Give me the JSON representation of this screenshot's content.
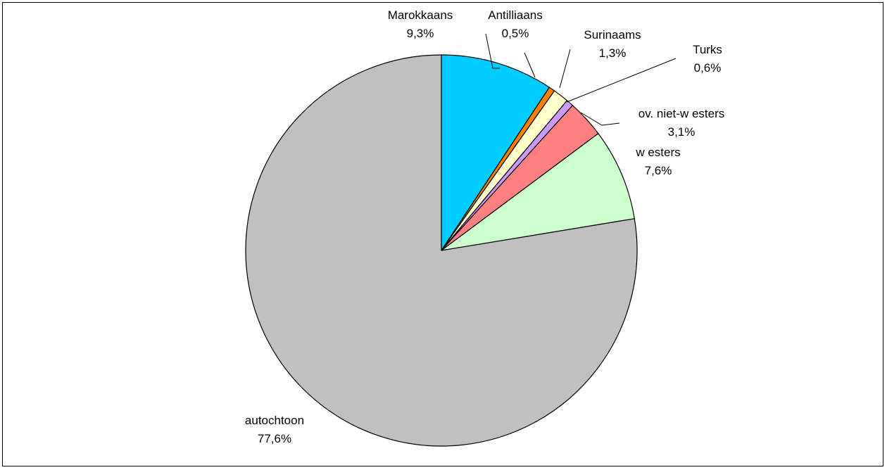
{
  "chart_data": {
    "type": "pie",
    "start_angle_deg": 0,
    "direction": "clockwise",
    "slices": [
      {
        "label": "Marokkaans",
        "value_label": "9,3%",
        "value": 9.3,
        "color": "#00CCFF"
      },
      {
        "label": "Antilliaans",
        "value_label": "0,5%",
        "value": 0.5,
        "color": "#FF8000"
      },
      {
        "label": "Surinaams",
        "value_label": "1,3%",
        "value": 1.3,
        "color": "#FFFFCC"
      },
      {
        "label": "Turks",
        "value_label": "0,6%",
        "value": 0.6,
        "color": "#CC99FF"
      },
      {
        "label": "ov. niet-w esters",
        "value_label": "3,1%",
        "value": 3.1,
        "color": "#FF8080"
      },
      {
        "label": "w esters",
        "value_label": "7,6%",
        "value": 7.6,
        "color": "#CCFFCC"
      },
      {
        "label": "autochtoon",
        "value_label": "77,6%",
        "value": 77.6,
        "color": "#C0C0C0"
      }
    ]
  }
}
